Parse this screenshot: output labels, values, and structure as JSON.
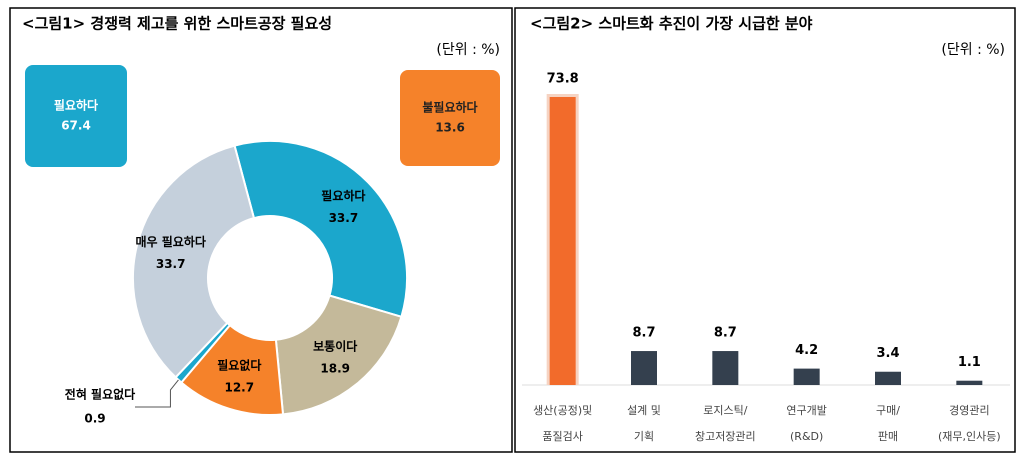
{
  "chart_data": [
    {
      "type": "donut",
      "title": "<그림1> 경쟁력 제고를 위한 스마트공장 필요성",
      "unit": "(단위 : %)",
      "categories": [
        "필요하다",
        "보통이다",
        "필요없다",
        "전혀 필요없다",
        "매우 필요하다"
      ],
      "values": [
        33.7,
        18.9,
        12.7,
        0.9,
        33.7
      ],
      "colors": [
        "#1ba7cc",
        "#c4b99a",
        "#f5822a",
        "#1ba7cc",
        "#c5d0dc"
      ],
      "callouts": [
        {
          "label": "필요하다",
          "value": 67.4,
          "color": "#1ba7cc"
        },
        {
          "label": "불필요하다",
          "value": 13.6,
          "color": "#f5822a"
        }
      ]
    },
    {
      "type": "bar",
      "title": "<그림2> 스마트화 추진이 가장 시급한 분야",
      "unit": "(단위 : %)",
      "categories": [
        [
          "생산(공정)및",
          "품질검사"
        ],
        [
          "설계 및",
          "기획"
        ],
        [
          "로지스틱/",
          "창고저장관리"
        ],
        [
          "연구개발",
          "(R&D)"
        ],
        [
          "구매/",
          "판매"
        ],
        [
          "경영관리",
          "(재무,인사등)"
        ]
      ],
      "values": [
        73.8,
        8.7,
        8.7,
        4.2,
        3.4,
        1.1
      ],
      "colors": [
        "#f26b2b",
        "#34404e",
        "#34404e",
        "#34404e",
        "#34404e",
        "#34404e"
      ]
    }
  ]
}
